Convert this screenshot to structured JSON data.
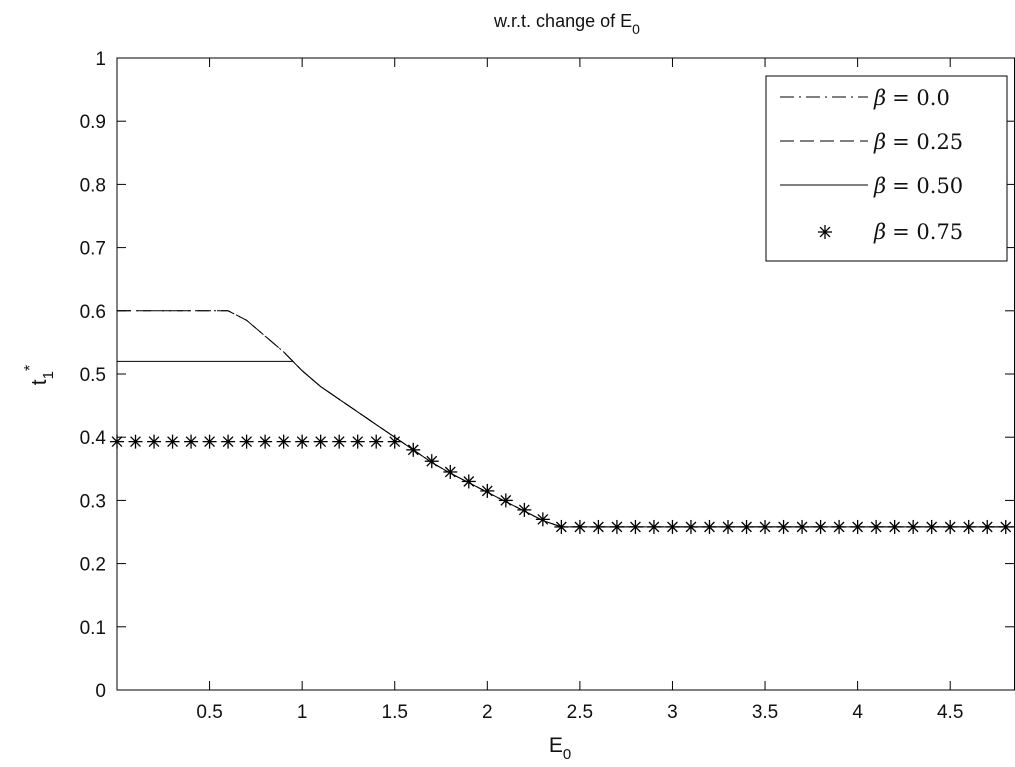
{
  "chart_data": {
    "type": "line",
    "title_main": "w.r.t. change of E",
    "title_sub": "0",
    "xlabel_main": "E",
    "xlabel_sub": "0",
    "ylabel_main": "t",
    "ylabel_sub": "1",
    "ylabel_sup": "*",
    "xlim": [
      0.0,
      4.85
    ],
    "ylim": [
      0,
      1
    ],
    "xticks": [
      0.5,
      1,
      1.5,
      2,
      2.5,
      3,
      3.5,
      4,
      4.5
    ],
    "xtick_labels": [
      "0.5",
      "1",
      "1.5",
      "2",
      "2.5",
      "3",
      "3.5",
      "4",
      "4.5"
    ],
    "yticks": [
      0,
      0.1,
      0.2,
      0.3,
      0.4,
      0.5,
      0.6,
      0.7,
      0.8,
      0.9,
      1
    ],
    "ytick_labels": [
      "0",
      "0.1",
      "0.2",
      "0.3",
      "0.4",
      "0.5",
      "0.6",
      "0.7",
      "0.8",
      "0.9",
      "1"
    ],
    "legend_position": "top-right",
    "grid": false,
    "series": [
      {
        "name": "β = 0.0",
        "beta_symbol": "β",
        "beta_value": "= 0.0",
        "style": "dashdot",
        "x": [
          0.0,
          0.6,
          0.7,
          0.8,
          0.9,
          1.0,
          1.1,
          1.2,
          1.3,
          1.4,
          1.5,
          1.6,
          1.7,
          1.8,
          1.9,
          2.0,
          2.1,
          2.2,
          2.3,
          2.4,
          4.85
        ],
        "y": [
          0.6,
          0.6,
          0.585,
          0.56,
          0.535,
          0.505,
          0.48,
          0.46,
          0.44,
          0.42,
          0.4,
          0.38,
          0.36,
          0.343,
          0.328,
          0.313,
          0.298,
          0.283,
          0.268,
          0.258,
          0.258
        ]
      },
      {
        "name": "β = 0.25",
        "beta_symbol": "β",
        "beta_value": "= 0.25",
        "style": "dashed",
        "x": [
          0.0,
          0.6,
          0.7,
          0.8,
          0.9,
          1.0,
          1.1,
          1.2,
          1.3,
          1.4,
          1.5,
          1.6,
          1.7,
          1.8,
          1.9,
          2.0,
          2.1,
          2.2,
          2.3,
          2.4,
          4.85
        ],
        "y": [
          0.6,
          0.6,
          0.585,
          0.56,
          0.535,
          0.505,
          0.48,
          0.46,
          0.44,
          0.42,
          0.4,
          0.38,
          0.36,
          0.343,
          0.328,
          0.313,
          0.298,
          0.283,
          0.268,
          0.258,
          0.258
        ]
      },
      {
        "name": "β = 0.50",
        "beta_symbol": "β",
        "beta_value": "= 0.50",
        "style": "solid",
        "x": [
          0.0,
          0.95,
          1.0,
          1.1,
          1.2,
          1.3,
          1.4,
          1.5,
          1.6,
          1.7,
          1.8,
          1.9,
          2.0,
          2.1,
          2.2,
          2.3,
          2.4,
          4.85
        ],
        "y": [
          0.52,
          0.52,
          0.505,
          0.48,
          0.46,
          0.44,
          0.42,
          0.4,
          0.38,
          0.36,
          0.343,
          0.328,
          0.313,
          0.298,
          0.283,
          0.268,
          0.258,
          0.258
        ]
      },
      {
        "name": "β = 0.75",
        "beta_symbol": "β",
        "beta_value": "= 0.75",
        "style": "star",
        "x": [
          0.0,
          0.1,
          0.2,
          0.3,
          0.4,
          0.5,
          0.6,
          0.7,
          0.8,
          0.9,
          1.0,
          1.1,
          1.2,
          1.3,
          1.4,
          1.5,
          1.6,
          1.7,
          1.8,
          1.9,
          2.0,
          2.1,
          2.2,
          2.3,
          2.4,
          2.5,
          2.6,
          2.7,
          2.8,
          2.9,
          3.0,
          3.1,
          3.2,
          3.3,
          3.4,
          3.5,
          3.6,
          3.7,
          3.8,
          3.9,
          4.0,
          4.1,
          4.2,
          4.3,
          4.4,
          4.5,
          4.6,
          4.7,
          4.8
        ],
        "y": [
          0.393,
          0.393,
          0.393,
          0.393,
          0.393,
          0.393,
          0.393,
          0.393,
          0.393,
          0.393,
          0.393,
          0.393,
          0.393,
          0.393,
          0.393,
          0.393,
          0.38,
          0.362,
          0.345,
          0.33,
          0.315,
          0.3,
          0.285,
          0.27,
          0.258,
          0.258,
          0.258,
          0.258,
          0.258,
          0.258,
          0.258,
          0.258,
          0.258,
          0.258,
          0.258,
          0.258,
          0.258,
          0.258,
          0.258,
          0.258,
          0.258,
          0.258,
          0.258,
          0.258,
          0.258,
          0.258,
          0.258,
          0.258,
          0.258
        ]
      }
    ]
  }
}
